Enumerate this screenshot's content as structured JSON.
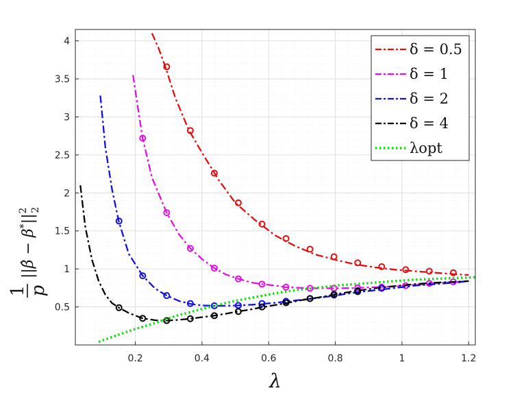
{
  "chart_data": {
    "type": "line",
    "title": "",
    "xlabel": "λ",
    "ylabel": "1/p ||β̂ − β*||²₂",
    "xlim": [
      0.02,
      1.22
    ],
    "ylim": [
      0.0,
      4.15
    ],
    "x_ticks": [
      "0.2",
      "0.4",
      "0.6",
      "0.8",
      "1",
      "1.2"
    ],
    "y_ticks": [
      "0.5",
      "1",
      "1.5",
      "2",
      "2.5",
      "3",
      "3.5",
      "4"
    ],
    "x_tick_values": [
      0.2,
      0.4,
      0.6,
      0.8,
      1.0,
      1.2
    ],
    "y_tick_values": [
      0.5,
      1,
      1.5,
      2,
      2.5,
      3,
      3.5,
      4
    ],
    "grid": true,
    "minor_grid": true,
    "legend_position": "top-right",
    "series": [
      {
        "name": "δ = 0.5",
        "color": "#e01010",
        "style": "dash-dot",
        "marker": "circle",
        "line": {
          "x": [
            0.25,
            0.27,
            0.29,
            0.32,
            0.36,
            0.4,
            0.45,
            0.5,
            0.56,
            0.62,
            0.68,
            0.74,
            0.8,
            0.86,
            0.92,
            0.98,
            1.04,
            1.1,
            1.16,
            1.2
          ],
          "y": [
            4.1,
            3.9,
            3.66,
            3.25,
            2.83,
            2.53,
            2.17,
            1.87,
            1.64,
            1.44,
            1.3,
            1.19,
            1.12,
            1.06,
            1.02,
            0.99,
            0.97,
            0.95,
            0.93,
            0.92
          ]
        },
        "markers": {
          "x": [
            0.294,
            0.365,
            0.437,
            0.509,
            0.58,
            0.652,
            0.724,
            0.796,
            0.867,
            0.939,
            1.011,
            1.082,
            1.154
          ],
          "y": [
            3.66,
            2.82,
            2.26,
            1.87,
            1.59,
            1.4,
            1.26,
            1.16,
            1.08,
            1.03,
            0.99,
            0.97,
            0.95
          ]
        }
      },
      {
        "name": "δ = 1",
        "color": "#e010e0",
        "style": "dash-dot",
        "marker": "circle",
        "line": {
          "x": [
            0.193,
            0.21,
            0.222,
            0.25,
            0.294,
            0.33,
            0.365,
            0.4,
            0.437,
            0.47,
            0.509,
            0.55,
            0.58,
            0.62,
            0.652,
            0.7,
            0.75,
            0.8,
            0.86,
            0.92,
            0.98,
            1.04,
            1.1,
            1.16,
            1.2
          ],
          "y": [
            3.55,
            3.05,
            2.72,
            2.2,
            1.74,
            1.46,
            1.27,
            1.13,
            1.01,
            0.93,
            0.87,
            0.82,
            0.8,
            0.78,
            0.76,
            0.75,
            0.745,
            0.745,
            0.75,
            0.76,
            0.77,
            0.79,
            0.81,
            0.83,
            0.84
          ]
        },
        "markers": {
          "x": [
            0.222,
            0.294,
            0.365,
            0.437,
            0.509,
            0.58,
            0.652,
            0.724,
            0.796,
            0.867,
            0.939,
            1.011,
            1.082,
            1.154
          ],
          "y": [
            2.72,
            1.74,
            1.27,
            1.01,
            0.87,
            0.8,
            0.76,
            0.745,
            0.745,
            0.75,
            0.76,
            0.78,
            0.81,
            0.83
          ]
        }
      },
      {
        "name": "δ = 2",
        "color": "#1010e0",
        "style": "dash-dot",
        "marker": "circle",
        "line": {
          "x": [
            0.095,
            0.11,
            0.13,
            0.15,
            0.18,
            0.222,
            0.26,
            0.294,
            0.33,
            0.365,
            0.4,
            0.437,
            0.47,
            0.509,
            0.55,
            0.58,
            0.62,
            0.652,
            0.7,
            0.75,
            0.8,
            0.86,
            0.92,
            0.98,
            1.04,
            1.1,
            1.16,
            1.2
          ],
          "y": [
            3.28,
            2.6,
            2.05,
            1.63,
            1.2,
            0.91,
            0.74,
            0.65,
            0.58,
            0.54,
            0.52,
            0.515,
            0.515,
            0.52,
            0.53,
            0.54,
            0.555,
            0.57,
            0.595,
            0.62,
            0.65,
            0.69,
            0.72,
            0.75,
            0.78,
            0.8,
            0.82,
            0.84
          ]
        },
        "markers": {
          "x": [
            0.151,
            0.222,
            0.294,
            0.365,
            0.437,
            0.509,
            0.58,
            0.652,
            0.724,
            0.796,
            0.867,
            0.939
          ],
          "y": [
            1.63,
            0.91,
            0.65,
            0.545,
            0.515,
            0.52,
            0.545,
            0.575,
            0.61,
            0.655,
            0.7,
            0.745
          ]
        }
      },
      {
        "name": "δ = 4",
        "color": "#000000",
        "style": "dash-dot",
        "marker": "circle",
        "line": {
          "x": [
            0.035,
            0.05,
            0.07,
            0.09,
            0.11,
            0.13,
            0.151,
            0.18,
            0.222,
            0.26,
            0.294,
            0.33,
            0.365,
            0.4,
            0.437,
            0.47,
            0.509,
            0.55,
            0.58,
            0.62,
            0.652,
            0.7,
            0.75,
            0.8,
            0.86,
            0.92,
            0.98,
            1.04,
            1.1,
            1.16,
            1.2
          ],
          "y": [
            2.1,
            1.55,
            1.12,
            0.84,
            0.66,
            0.55,
            0.49,
            0.42,
            0.35,
            0.325,
            0.32,
            0.33,
            0.345,
            0.365,
            0.385,
            0.41,
            0.44,
            0.47,
            0.495,
            0.525,
            0.55,
            0.59,
            0.625,
            0.665,
            0.71,
            0.745,
            0.775,
            0.8,
            0.82,
            0.83,
            0.84
          ]
        },
        "markers": {
          "x": [
            0.151,
            0.222,
            0.294,
            0.365,
            0.437,
            0.509,
            0.58,
            0.652,
            0.724,
            0.796,
            0.867
          ],
          "y": [
            0.49,
            0.35,
            0.32,
            0.345,
            0.385,
            0.44,
            0.5,
            0.555,
            0.61,
            0.665,
            0.71
          ]
        }
      },
      {
        "name": "λopt",
        "color": "#10e010",
        "style": "dotted",
        "marker": "none",
        "line": {
          "x": [
            0.09,
            0.14,
            0.2,
            0.26,
            0.32,
            0.38,
            0.44,
            0.5,
            0.56,
            0.62,
            0.68,
            0.74,
            0.8,
            0.86,
            0.92,
            0.98,
            1.04,
            1.1,
            1.16,
            1.22
          ],
          "y": [
            0.04,
            0.12,
            0.21,
            0.29,
            0.38,
            0.45,
            0.52,
            0.58,
            0.63,
            0.68,
            0.72,
            0.75,
            0.78,
            0.8,
            0.82,
            0.84,
            0.86,
            0.87,
            0.88,
            0.89
          ]
        },
        "markers": {
          "x": [],
          "y": []
        }
      }
    ]
  }
}
